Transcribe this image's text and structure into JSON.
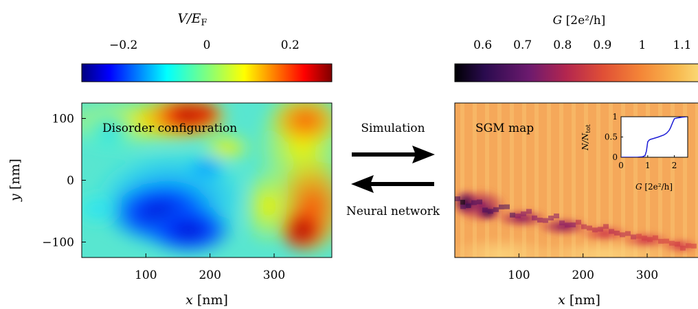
{
  "left_panel": {
    "colorbar": {
      "title_var": "V/E",
      "title_sub": "F",
      "ticks": [
        "−0.2",
        "0",
        "0.2"
      ],
      "tick_values": [
        -0.2,
        0,
        0.2
      ],
      "range": [
        -0.3,
        0.3
      ],
      "colormap": "jet"
    },
    "map_label": "Disorder configuration",
    "xlabel_var": "x",
    "xlabel_unit": "[nm]",
    "ylabel_var": "y",
    "ylabel_unit": "[nm]",
    "x_ticks": [
      "100",
      "200",
      "300"
    ],
    "x_tick_values": [
      100,
      200,
      300
    ],
    "x_range": [
      0,
      390
    ],
    "y_ticks": [
      "100",
      "0",
      "−100"
    ],
    "y_tick_values": [
      100,
      0,
      -100
    ],
    "y_range": [
      -125,
      125
    ]
  },
  "middle": {
    "forward_label": "Simulation",
    "backward_label": "Neural network"
  },
  "right_panel": {
    "colorbar": {
      "title_var": "G",
      "title_unit": "[2e²/h]",
      "ticks": [
        "0.6",
        "0.7",
        "0.8",
        "0.9",
        "1",
        "1.1"
      ],
      "tick_values": [
        0.6,
        0.7,
        0.8,
        0.9,
        1.0,
        1.1
      ],
      "range": [
        0.53,
        1.15
      ],
      "colormap": "inferno-like"
    },
    "map_label": "SGM map",
    "xlabel_var": "x",
    "xlabel_unit": "[nm]",
    "x_ticks": [
      "100",
      "200",
      "300"
    ],
    "x_tick_values": [
      100,
      200,
      300
    ],
    "x_range": [
      0,
      390
    ],
    "inset": {
      "ylabel_var": "N/N",
      "ylabel_sub": "tot",
      "xlabel_var": "G",
      "xlabel_unit": "[2e²/h]",
      "x_ticks": [
        "0",
        "1",
        "2"
      ],
      "x_tick_values": [
        0,
        1,
        2
      ],
      "x_range": [
        0,
        2.5
      ],
      "y_ticks": [
        "0",
        "0.5",
        "1"
      ],
      "y_tick_values": [
        0,
        0.5,
        1
      ],
      "y_range": [
        0,
        1
      ],
      "curve_color": "#1c1cd6",
      "chart_data": {
        "type": "line",
        "x": [
          0,
          0.6,
          0.8,
          0.9,
          0.95,
          1.0,
          1.05,
          1.1,
          1.2,
          1.4,
          1.6,
          1.7,
          1.8,
          1.85,
          1.9,
          1.95,
          2.0,
          2.1,
          2.2,
          2.3,
          2.45
        ],
        "y": [
          0,
          0,
          0.01,
          0.04,
          0.15,
          0.38,
          0.42,
          0.44,
          0.46,
          0.5,
          0.55,
          0.59,
          0.66,
          0.72,
          0.8,
          0.88,
          0.95,
          0.97,
          0.98,
          0.99,
          1.0
        ]
      }
    }
  }
}
